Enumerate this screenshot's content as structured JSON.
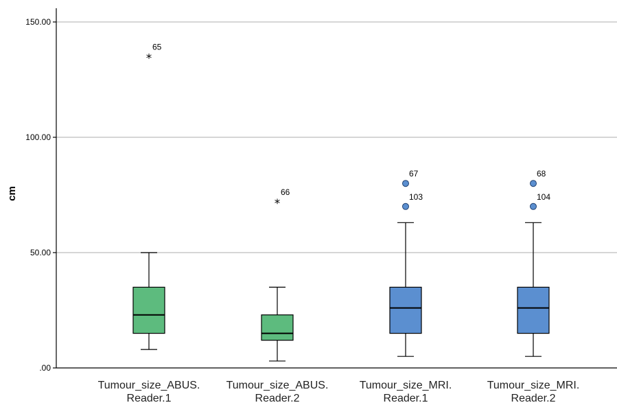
{
  "chart_data": {
    "type": "boxplot",
    "ylabel": "cm",
    "xlabel": "",
    "title": "",
    "ylim": [
      0,
      160
    ],
    "yticks": [
      0,
      50,
      100,
      150
    ],
    "ytick_labels": [
      ".00",
      "50.00",
      "100.00",
      "150.00"
    ],
    "grid": "horizontal",
    "colors": {
      "abus": "#5dbb7e",
      "mri": "#5b8fd0"
    },
    "categories": [
      {
        "label_lines": [
          "Tumour_size_ABUS.",
          "Reader.1"
        ],
        "color": "#5dbb7e",
        "whisker_low": 8,
        "q1": 15,
        "median": 23,
        "q3": 35,
        "whisker_high": 50,
        "outliers": [
          {
            "value": 135,
            "label": "65",
            "marker": "star"
          }
        ]
      },
      {
        "label_lines": [
          "Tumour_size_ABUS.",
          "Reader.2"
        ],
        "color": "#5dbb7e",
        "whisker_low": 3,
        "q1": 12,
        "median": 15,
        "q3": 23,
        "whisker_high": 35,
        "outliers": [
          {
            "value": 72,
            "label": "66",
            "marker": "star"
          }
        ]
      },
      {
        "label_lines": [
          "Tumour_size_MRI.",
          "Reader.1"
        ],
        "color": "#5b8fd0",
        "whisker_low": 5,
        "q1": 15,
        "median": 26,
        "q3": 35,
        "whisker_high": 63,
        "outliers": [
          {
            "value": 80,
            "label": "67",
            "marker": "circle"
          },
          {
            "value": 70,
            "label": "103",
            "marker": "circle"
          }
        ]
      },
      {
        "label_lines": [
          "Tumour_size_MRI.",
          "Reader.2"
        ],
        "color": "#5b8fd0",
        "whisker_low": 5,
        "q1": 15,
        "median": 26,
        "q3": 35,
        "whisker_high": 63,
        "outliers": [
          {
            "value": 80,
            "label": "68",
            "marker": "circle"
          },
          {
            "value": 70,
            "label": "104",
            "marker": "circle"
          }
        ]
      }
    ]
  }
}
